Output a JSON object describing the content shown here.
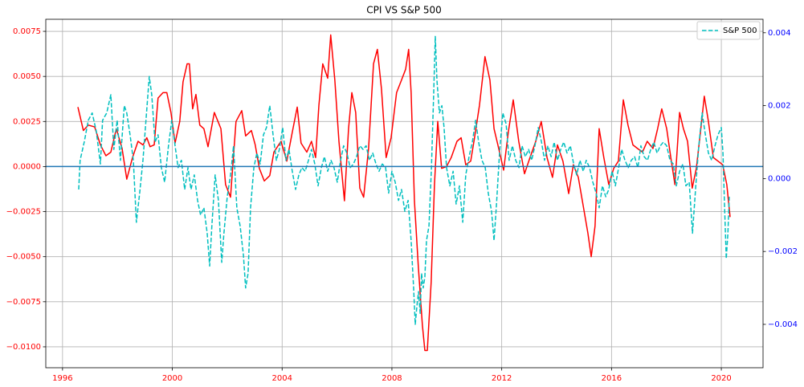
{
  "chart_data": {
    "type": "line",
    "title": "CPI VS S&P 500",
    "xlim": [
      1995.39,
      2021.52
    ],
    "xticks": [
      1996,
      2000,
      2004,
      2008,
      2012,
      2016,
      2020
    ],
    "ylim": [
      -0.01116,
      0.00817
    ],
    "yticks": [
      {
        "value": -0.01,
        "label": "−0.0100"
      },
      {
        "value": -0.0075,
        "label": "−0.0075"
      },
      {
        "value": -0.005,
        "label": "−0.0050"
      },
      {
        "value": -0.0025,
        "label": "−0.0025"
      },
      {
        "value": 0,
        "label": "0.0000"
      },
      0.0025,
      {
        "value": 0.005,
        "label": "0.0050"
      },
      0.0075
    ],
    "y2lim": [
      -0.00519,
      0.00437
    ],
    "y2ticks": [
      {
        "value": -0.004,
        "label": "−0.004"
      },
      {
        "value": -0.002,
        "label": "−0.002"
      },
      {
        "value": 0,
        "label": "0.000"
      },
      0.002,
      0.004
    ],
    "grid": true,
    "legend": "upper right",
    "hline": 0,
    "hline_color": "#1f77b4",
    "x_tick_color": "#ff0000",
    "y_tick_color": "#ff0000",
    "y2_tick_color": "#0000ff",
    "series": [
      {
        "color": "#ff0000",
        "dashed": false,
        "x": [
          1996.56,
          1996.76,
          1996.94,
          1997.17,
          1997.38,
          1997.58,
          1997.76,
          1997.96,
          1998.17,
          1998.34,
          1998.55,
          1998.75,
          1998.93,
          1999.07,
          1999.19,
          1999.34,
          1999.48,
          1999.66,
          1999.8,
          1999.95,
          2000.1,
          2000.27,
          2000.39,
          2000.54,
          2000.62,
          2000.74,
          2000.86,
          2001.0,
          2001.15,
          2001.3,
          2001.53,
          2001.77,
          2001.94,
          2002.12,
          2002.32,
          2002.53,
          2002.67,
          2002.88,
          2003.02,
          2003.17,
          2003.35,
          2003.55,
          2003.7,
          2003.96,
          2004.17,
          2004.37,
          2004.55,
          2004.69,
          2004.9,
          2005.07,
          2005.22,
          2005.34,
          2005.48,
          2005.66,
          2005.77,
          2005.92,
          2006.07,
          2006.27,
          2006.42,
          2006.54,
          2006.68,
          2006.83,
          2006.97,
          2007.15,
          2007.33,
          2007.47,
          2007.62,
          2007.79,
          2007.97,
          2008.17,
          2008.35,
          2008.5,
          2008.61,
          2008.7,
          2008.82,
          2008.96,
          2009.11,
          2009.2,
          2009.29,
          2009.43,
          2009.55,
          2009.67,
          2009.81,
          2009.99,
          2010.16,
          2010.37,
          2010.52,
          2010.69,
          2010.87,
          2011.01,
          2011.19,
          2011.39,
          2011.57,
          2011.72,
          2011.86,
          2012.07,
          2012.24,
          2012.42,
          2012.62,
          2012.83,
          2013.03,
          2013.24,
          2013.44,
          2013.65,
          2013.85,
          2014.03,
          2014.23,
          2014.44,
          2014.61,
          2014.79,
          2014.96,
          2015.14,
          2015.26,
          2015.4,
          2015.55,
          2015.72,
          2015.9,
          2016.08,
          2016.25,
          2016.43,
          2016.6,
          2016.78,
          2016.95,
          2017.13,
          2017.3,
          2017.51,
          2017.68,
          2017.83,
          2018.01,
          2018.16,
          2018.31,
          2018.48,
          2018.62,
          2018.77,
          2018.94,
          2019.09,
          2019.24,
          2019.38,
          2019.53,
          2019.71,
          2019.88,
          2020.05,
          2020.2,
          2020.32
        ],
        "values": [
          0.0033,
          0.002,
          0.0023,
          0.0022,
          0.0012,
          0.0006,
          0.0008,
          0.0021,
          0.001,
          -0.0007,
          0.0005,
          0.0014,
          0.0012,
          0.0016,
          0.0011,
          0.0012,
          0.0038,
          0.0041,
          0.0041,
          0.003,
          0.0013,
          0.0025,
          0.0047,
          0.0057,
          0.0057,
          0.0032,
          0.004,
          0.0023,
          0.0021,
          0.0011,
          0.003,
          0.0021,
          -0.001,
          -0.0017,
          0.0025,
          0.0031,
          0.0017,
          0.002,
          0.0012,
          -0.0001,
          -0.0008,
          -0.0005,
          0.0008,
          0.0014,
          0.0003,
          0.0019,
          0.0033,
          0.0013,
          0.0008,
          0.0014,
          0.0005,
          0.0034,
          0.0057,
          0.0049,
          0.0073,
          0.0048,
          0.0014,
          -0.0019,
          0.0021,
          0.0041,
          0.003,
          -0.0012,
          -0.0017,
          0.001,
          0.0057,
          0.0065,
          0.0043,
          0.0005,
          0.0016,
          0.0041,
          0.0048,
          0.0054,
          0.0065,
          0.0041,
          -0.0019,
          -0.0055,
          -0.0088,
          -0.0102,
          -0.0102,
          -0.0064,
          -0.001,
          0.0025,
          -0.0001,
          0.0,
          0.0005,
          0.0014,
          0.0016,
          0.0001,
          0.0003,
          0.0016,
          0.0034,
          0.0061,
          0.0048,
          0.0021,
          0.0012,
          -0.0002,
          0.0019,
          0.0037,
          0.0014,
          -0.0004,
          0.0005,
          0.0014,
          0.0025,
          0.0005,
          -0.0006,
          0.0012,
          0.0003,
          -0.0015,
          0.0001,
          -0.0006,
          -0.0021,
          -0.0037,
          -0.005,
          -0.0033,
          0.0021,
          0.0005,
          -0.001,
          -0.0001,
          0.0003,
          0.0037,
          0.0023,
          0.0012,
          0.001,
          0.0008,
          0.0014,
          0.001,
          0.0021,
          0.0032,
          0.0021,
          0.0005,
          -0.001,
          0.003,
          0.0021,
          0.0014,
          -0.0012,
          -0.0001,
          0.0019,
          0.0039,
          0.0025,
          0.0005,
          0.0003,
          0.0001,
          -0.001,
          -0.0028
        ]
      },
      {
        "name": "S&P 500",
        "color": "#00bfbf",
        "dashed": true,
        "axis": "y2",
        "x": [
          1996.59,
          1996.64,
          1996.79,
          1996.94,
          1997.08,
          1997.23,
          1997.38,
          1997.46,
          1997.61,
          1997.76,
          1997.87,
          1997.99,
          1998.11,
          1998.25,
          1998.34,
          1998.46,
          1998.58,
          1998.69,
          1998.81,
          1998.93,
          1999.04,
          1999.16,
          1999.25,
          1999.37,
          1999.48,
          1999.6,
          1999.72,
          1999.86,
          1999.98,
          2000.1,
          2000.21,
          2000.33,
          2000.45,
          2000.57,
          2000.68,
          2000.8,
          2000.92,
          2001.03,
          2001.15,
          2001.27,
          2001.36,
          2001.44,
          2001.56,
          2001.68,
          2001.8,
          2001.88,
          2002.0,
          2002.12,
          2002.23,
          2002.35,
          2002.47,
          2002.59,
          2002.67,
          2002.76,
          2002.85,
          2002.97,
          2003.08,
          2003.2,
          2003.32,
          2003.43,
          2003.55,
          2003.67,
          2003.79,
          2003.9,
          2004.02,
          2004.14,
          2004.25,
          2004.37,
          2004.49,
          2004.61,
          2004.72,
          2004.84,
          2004.96,
          2005.07,
          2005.19,
          2005.31,
          2005.43,
          2005.54,
          2005.66,
          2005.78,
          2005.89,
          2006.01,
          2006.13,
          2006.24,
          2006.36,
          2006.48,
          2006.6,
          2006.71,
          2006.83,
          2006.95,
          2007.06,
          2007.18,
          2007.3,
          2007.42,
          2007.53,
          2007.65,
          2007.77,
          2007.88,
          2008.0,
          2008.12,
          2008.24,
          2008.35,
          2008.47,
          2008.59,
          2008.7,
          2008.79,
          2008.85,
          2008.91,
          2008.97,
          2009.03,
          2009.08,
          2009.14,
          2009.2,
          2009.26,
          2009.35,
          2009.44,
          2009.52,
          2009.58,
          2009.64,
          2009.73,
          2009.82,
          2009.9,
          2009.99,
          2010.11,
          2010.23,
          2010.34,
          2010.46,
          2010.58,
          2010.69,
          2010.81,
          2010.93,
          2011.05,
          2011.16,
          2011.28,
          2011.4,
          2011.51,
          2011.63,
          2011.72,
          2011.81,
          2011.92,
          2012.04,
          2012.16,
          2012.27,
          2012.39,
          2012.51,
          2012.63,
          2012.74,
          2012.86,
          2012.98,
          2013.09,
          2013.21,
          2013.33,
          2013.45,
          2013.56,
          2013.68,
          2013.8,
          2013.91,
          2014.03,
          2014.15,
          2014.26,
          2014.38,
          2014.5,
          2014.62,
          2014.73,
          2014.85,
          2014.97,
          2015.08,
          2015.2,
          2015.32,
          2015.44,
          2015.55,
          2015.67,
          2015.79,
          2015.9,
          2016.02,
          2016.14,
          2016.26,
          2016.37,
          2016.49,
          2016.61,
          2016.72,
          2016.84,
          2016.96,
          2017.07,
          2017.19,
          2017.31,
          2017.43,
          2017.54,
          2017.66,
          2017.78,
          2017.89,
          2018.01,
          2018.13,
          2018.25,
          2018.36,
          2018.48,
          2018.6,
          2018.71,
          2018.83,
          2018.95,
          2019.07,
          2019.18,
          2019.3,
          2019.42,
          2019.53,
          2019.65,
          2019.77,
          2019.88,
          2020.0,
          2020.06,
          2020.12,
          2020.18,
          2020.24,
          2020.29
        ],
        "values": [
          -0.0003,
          0.0005,
          0.001,
          0.0016,
          0.0018,
          0.0013,
          0.0004,
          0.0016,
          0.0018,
          0.0023,
          0.0008,
          0.0016,
          0.0005,
          0.002,
          0.0018,
          0.0012,
          0.0005,
          -0.0012,
          -0.0004,
          0.0005,
          0.0016,
          0.0028,
          0.0023,
          0.001,
          0.0012,
          0.0003,
          -0.0001,
          0.0009,
          0.0016,
          0.0009,
          0.0003,
          0.0005,
          -0.0003,
          0.0003,
          -0.0003,
          0.0001,
          -0.0006,
          -0.001,
          -0.0008,
          -0.0015,
          -0.0024,
          -0.0013,
          0.0001,
          -0.0006,
          -0.0023,
          -0.0015,
          -0.0005,
          0.0001,
          0.0009,
          -0.0008,
          -0.0013,
          -0.0021,
          -0.003,
          -0.0026,
          -0.0008,
          0.0003,
          0.0007,
          0.0004,
          0.0012,
          0.0014,
          0.002,
          0.0012,
          0.0005,
          0.0008,
          0.0014,
          0.0005,
          0.0008,
          0.0002,
          -0.0003,
          0.0001,
          0.0003,
          0.0002,
          0.0005,
          0.0008,
          0.0004,
          -0.0002,
          0.0003,
          0.0006,
          0.0002,
          0.0005,
          0.0003,
          -0.0001,
          0.0005,
          0.0009,
          0.0007,
          0.0003,
          0.0004,
          0.0006,
          0.0009,
          0.0008,
          0.0009,
          0.0005,
          0.0007,
          0.0004,
          0.0002,
          0.0004,
          0.0003,
          -0.0004,
          0.0002,
          -0.0001,
          -0.0006,
          -0.0003,
          -0.0009,
          -0.0006,
          -0.0017,
          -0.003,
          -0.004,
          -0.0035,
          -0.0031,
          -0.0037,
          -0.0026,
          -0.003,
          -0.0027,
          -0.0017,
          -0.0013,
          0.0003,
          0.0023,
          0.0039,
          0.0027,
          0.0018,
          0.002,
          0.0014,
          0.0003,
          -0.0002,
          0.0002,
          -0.0007,
          -0.0002,
          -0.0012,
          0.0001,
          0.0006,
          0.001,
          0.0016,
          0.001,
          0.0005,
          0.0003,
          -0.0004,
          -0.0009,
          -0.0017,
          -0.0007,
          0.0007,
          0.0018,
          0.0015,
          0.0005,
          0.0009,
          0.0005,
          0.0003,
          0.0009,
          0.0006,
          0.0008,
          0.0005,
          0.0009,
          0.0014,
          0.001,
          0.0005,
          0.0009,
          0.0006,
          0.001,
          0.0005,
          0.0008,
          0.001,
          0.0007,
          0.0009,
          0.0004,
          0.0001,
          0.0005,
          0.0002,
          0.0005,
          0.0003,
          -0.0001,
          -0.0004,
          -0.0008,
          -0.0002,
          -0.0005,
          -0.0003,
          0.0002,
          -0.0002,
          0.0003,
          0.0008,
          0.0005,
          0.0003,
          0.0005,
          0.0006,
          0.0003,
          0.0009,
          0.0006,
          0.0005,
          0.0008,
          0.001,
          0.0007,
          0.0009,
          0.001,
          0.0009,
          0.0005,
          0.0004,
          -0.0002,
          0.0002,
          0.0004,
          -0.0002,
          -0.0001,
          -0.0015,
          -0.0002,
          0.0009,
          0.0018,
          0.0012,
          0.0007,
          0.0005,
          0.0009,
          0.0012,
          0.0014,
          0.0007,
          -0.0008,
          -0.0022,
          -0.0015,
          -0.0005
        ]
      }
    ]
  }
}
